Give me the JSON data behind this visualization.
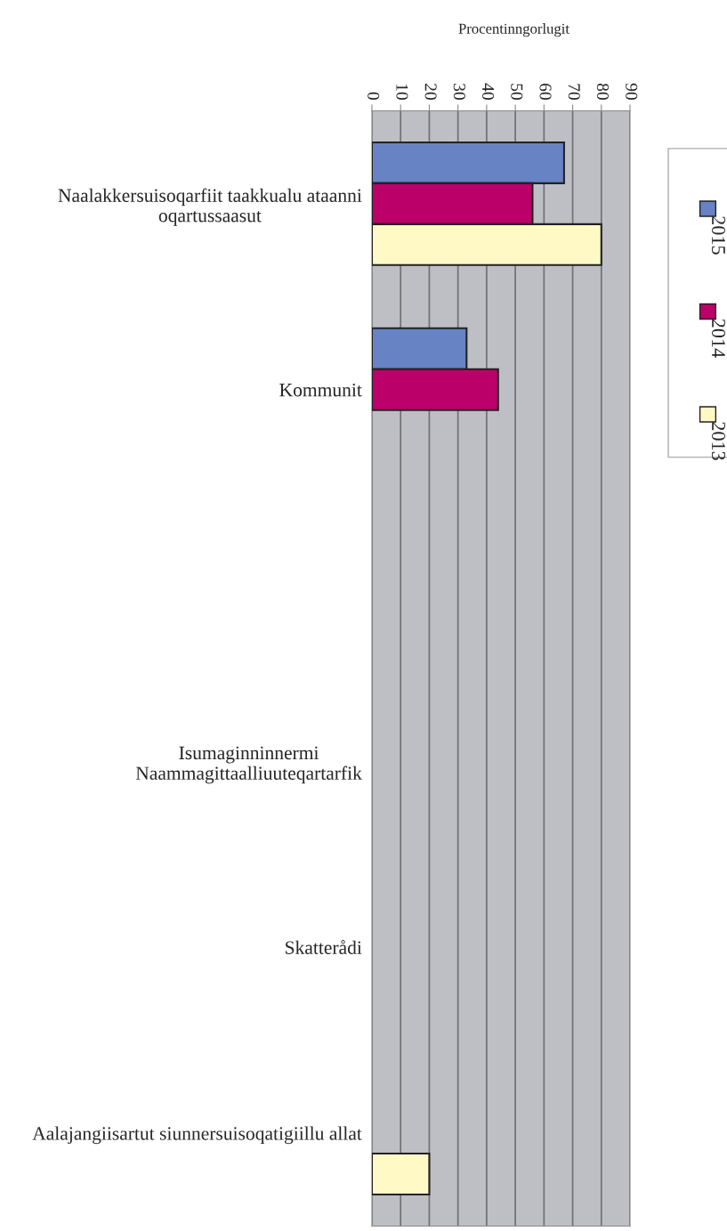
{
  "chart_data": {
    "type": "bar",
    "orientation": "horizontal",
    "xlabel": "Procentinngorlugit",
    "categories": [
      "Naalakkersuisoqarfiit taakkualu ataanni\noqartussaasut",
      "Kommunit",
      null,
      "Isumaginninnermi\nNaammagittaalliuuteqartarfik",
      "Skatterådi",
      "Aalajangiisartut siunnersuisoqatigiillu allat"
    ],
    "series": [
      {
        "name": "2015",
        "color": "#6783c4",
        "values": [
          67,
          33,
          null,
          null,
          null,
          null
        ]
      },
      {
        "name": "2014",
        "color": "#bc0069",
        "values": [
          56,
          44,
          null,
          null,
          null,
          null
        ]
      },
      {
        "name": "2013",
        "color": "#fff9c5",
        "values": [
          80,
          null,
          null,
          null,
          null,
          20
        ]
      }
    ],
    "xlim": [
      0,
      90
    ],
    "xticks": [
      0,
      10,
      20,
      30,
      40,
      50,
      60,
      70,
      80,
      90
    ],
    "grid": "x",
    "legend": "right"
  }
}
